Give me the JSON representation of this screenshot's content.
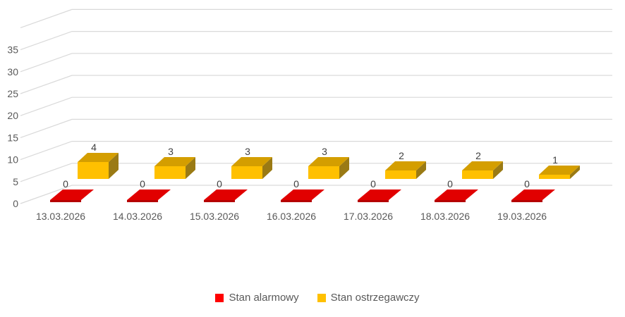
{
  "chart_data": {
    "type": "bar",
    "style": "3d-column",
    "title": "",
    "xlabel": "",
    "ylabel": "",
    "categories": [
      "13.03.2026",
      "14.03.2026",
      "15.03.2026",
      "16.03.2026",
      "17.03.2026",
      "18.03.2026",
      "19.03.2026"
    ],
    "series": [
      {
        "name": "Stan alarmowy",
        "values": [
          0,
          0,
          0,
          0,
          0,
          0,
          0
        ],
        "color": "#E10000",
        "front_edge_color": "#B50000",
        "legend_color": "#FF0000"
      },
      {
        "name": "Stan ostrzegawczy",
        "values": [
          4,
          3,
          3,
          3,
          2,
          2,
          1
        ],
        "color": "#FFC000",
        "top_color": "#D49E00",
        "side_color": "#9A7A14",
        "legend_color": "#FFC000"
      }
    ],
    "yticks": [
      0,
      5,
      10,
      15,
      20,
      25,
      30,
      35
    ],
    "ylim": [
      0,
      40
    ],
    "grid": true,
    "gridline_color": "#D9D9D9",
    "axis_label_color": "#595959",
    "value_label_color": "#404040",
    "legend_position": "bottom"
  }
}
